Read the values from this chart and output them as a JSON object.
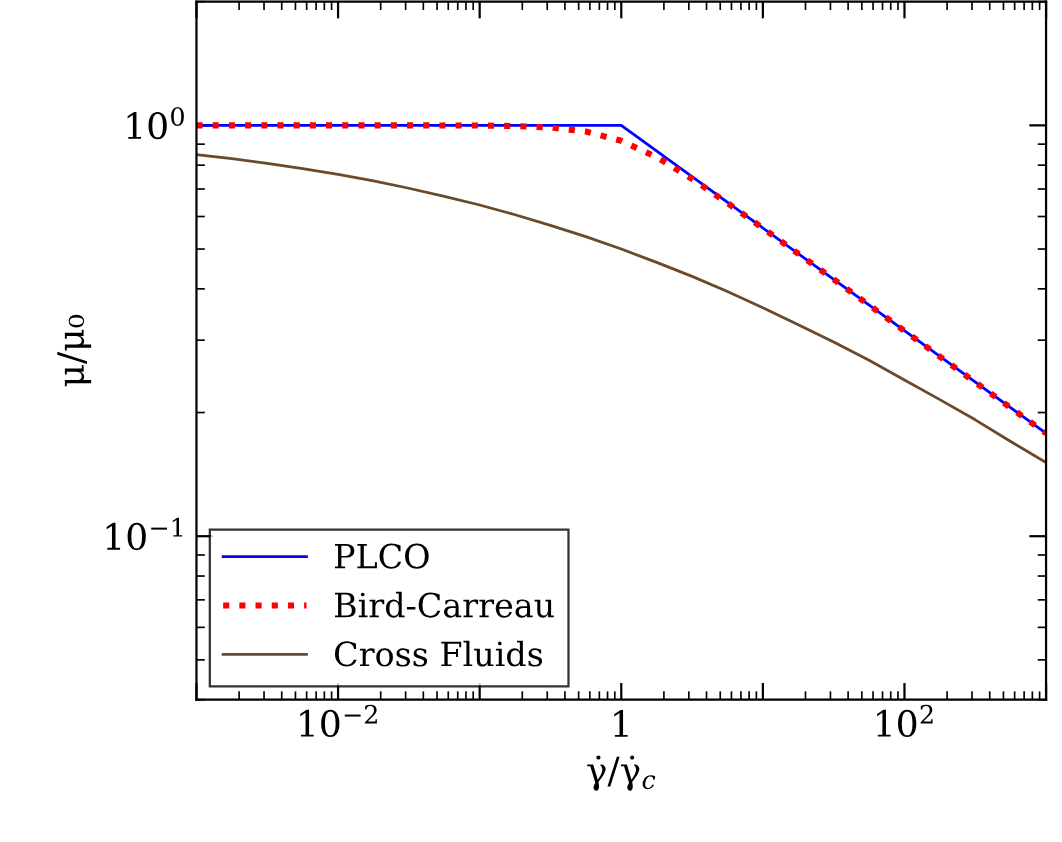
{
  "chart_data": {
    "type": "line",
    "xlabel": "γ̇/γ̇$_{c}$",
    "ylabel": "μ/μ₀",
    "log": "xy",
    "grid": false,
    "legend": "bottom left",
    "line_style": "solid",
    "marker": "none",
    "xlim": [
      0.001,
      1000
    ],
    "ylim": [
      0.04,
      2
    ],
    "xticks": [
      {
        "value": 0.001,
        "label": null
      },
      {
        "value": 0.01,
        "label": "10$^{−2}$"
      },
      {
        "value": 0.1,
        "label": null
      },
      {
        "value": 1,
        "label": "1"
      },
      {
        "value": 10,
        "label": null
      },
      {
        "value": 100,
        "label": "10$^{2}$"
      },
      {
        "value": 1000,
        "label": null
      }
    ],
    "yticks": [
      {
        "value": 0.1,
        "label": "10$^{−1}$"
      },
      {
        "value": 1,
        "label": "10$^{0}$"
      }
    ],
    "series": [
      {
        "name": "PLCO",
        "color": "#0000ff",
        "x": [
          0.001,
          1,
          1000
        ],
        "values": [
          1,
          1,
          0.178
        ]
      },
      {
        "name": "Bird-Carreau",
        "color": "#ff0000",
        "line_style": "dotted",
        "x": [
          0.001,
          0.01,
          0.0316,
          0.1,
          0.178,
          0.316,
          0.562,
          1,
          1.778,
          3.162,
          5.623,
          10,
          31.62,
          100,
          316.2,
          1000
        ],
        "values": [
          1.0,
          1.0,
          1.0,
          0.999,
          0.996,
          0.988,
          0.966,
          0.917,
          0.837,
          0.741,
          0.647,
          0.562,
          0.422,
          0.316,
          0.237,
          0.178
        ]
      },
      {
        "name": "Cross Fluids",
        "color": "#6b4a2b",
        "x": [
          0.001,
          0.00178,
          0.00316,
          0.00562,
          0.01,
          0.0178,
          0.0316,
          0.0562,
          0.1,
          0.178,
          0.316,
          0.562,
          1,
          1.778,
          3.162,
          5.623,
          10,
          17.78,
          31.62,
          56.23,
          100,
          177.8,
          316.2,
          562.3,
          1000
        ],
        "values": [
          0.849,
          0.83,
          0.808,
          0.785,
          0.76,
          0.733,
          0.703,
          0.672,
          0.64,
          0.606,
          0.571,
          0.536,
          0.5,
          0.464,
          0.429,
          0.394,
          0.36,
          0.327,
          0.297,
          0.268,
          0.24,
          0.215,
          0.192,
          0.17,
          0.151
        ]
      }
    ]
  }
}
